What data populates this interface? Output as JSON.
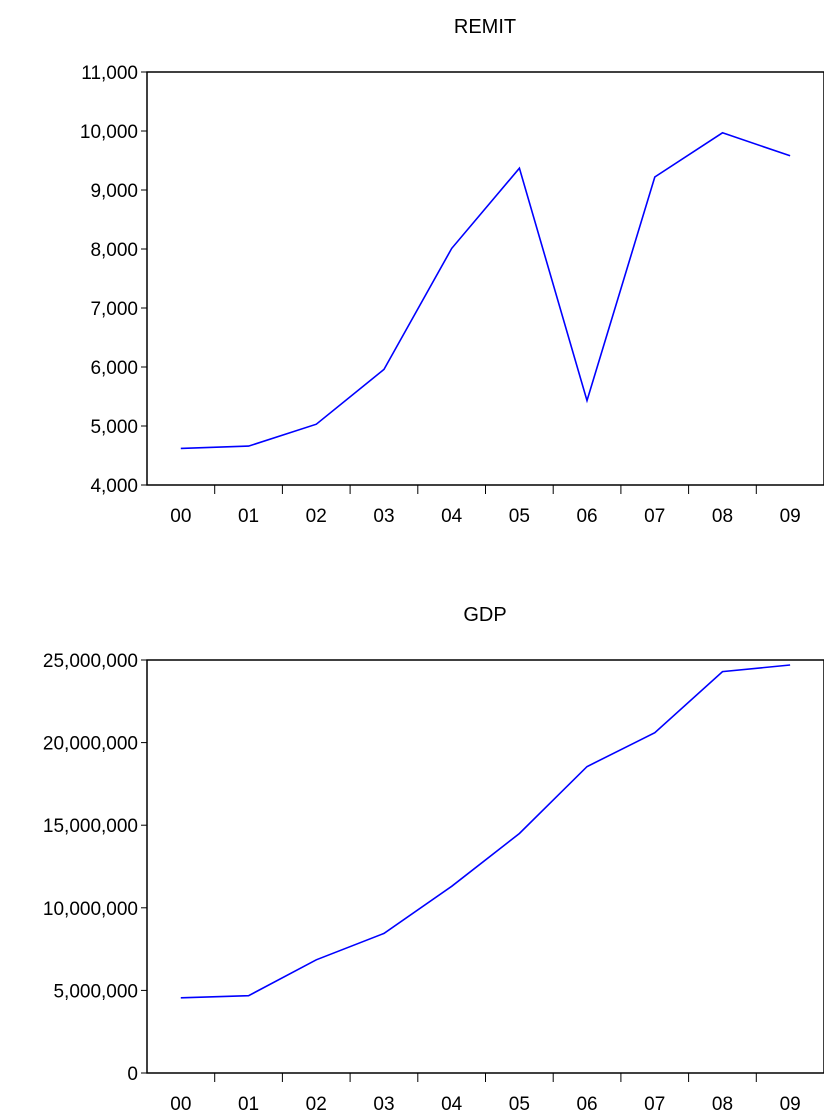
{
  "chart_data": [
    {
      "type": "line",
      "title": "REMIT",
      "categories": [
        "00",
        "01",
        "02",
        "03",
        "04",
        "05",
        "06",
        "07",
        "08",
        "09"
      ],
      "series": [
        {
          "values": [
            4620,
            4660,
            5030,
            5960,
            8010,
            9370,
            5430,
            9220,
            9970,
            9580
          ]
        }
      ],
      "ylim": [
        4000,
        11000
      ],
      "y_ticks": [
        4000,
        5000,
        6000,
        7000,
        8000,
        9000,
        10000,
        11000
      ],
      "y_tick_labels": [
        "4,000",
        "5,000",
        "6,000",
        "7,000",
        "8,000",
        "9,000",
        "10,000",
        "11,000"
      ],
      "line_color": "#0000ff",
      "grid": false
    },
    {
      "type": "line",
      "title": "GDP",
      "categories": [
        "00",
        "01",
        "02",
        "03",
        "04",
        "05",
        "06",
        "07",
        "08",
        "09"
      ],
      "series": [
        {
          "values": [
            4550000,
            4680000,
            6850000,
            8450000,
            11300000,
            14500000,
            18550000,
            20600000,
            24300000,
            24700000
          ]
        }
      ],
      "ylim": [
        0,
        25000000
      ],
      "y_ticks": [
        0,
        5000000,
        10000000,
        15000000,
        20000000,
        25000000
      ],
      "y_tick_labels": [
        "0",
        "5,000,000",
        "10,000,000",
        "15,000,000",
        "20,000,000",
        "25,000,000"
      ],
      "line_color": "#0000ff",
      "grid": false
    }
  ]
}
